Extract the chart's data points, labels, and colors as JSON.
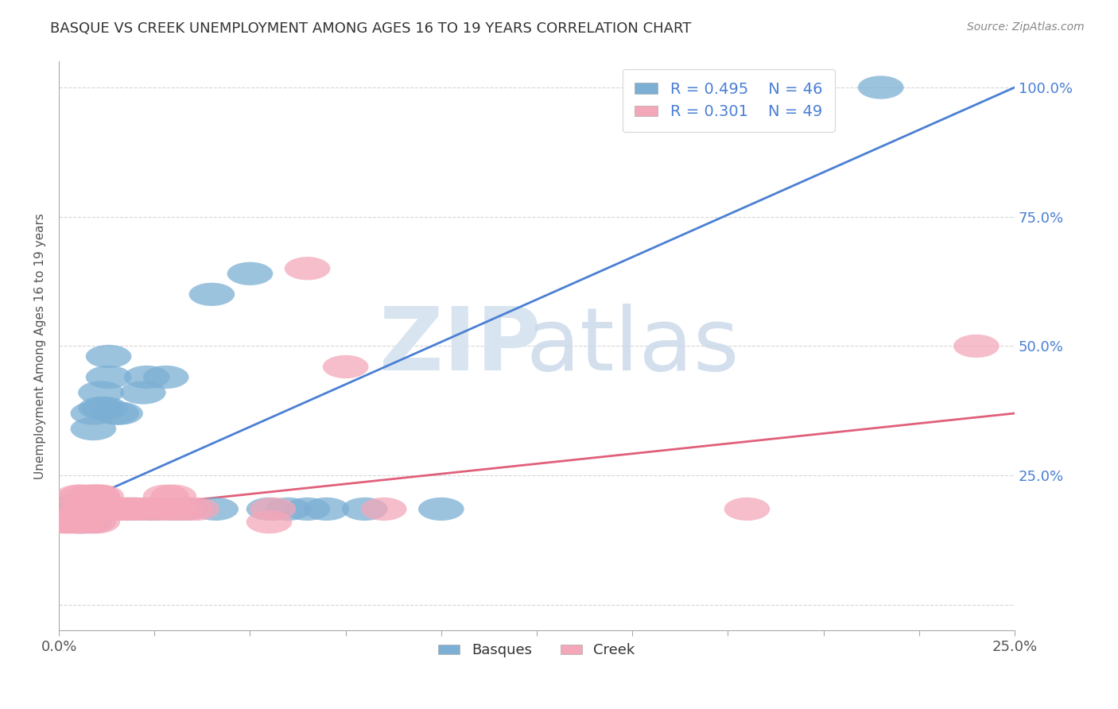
{
  "title": "BASQUE VS CREEK UNEMPLOYMENT AMONG AGES 16 TO 19 YEARS CORRELATION CHART",
  "source": "Source: ZipAtlas.com",
  "ylabel": "Unemployment Among Ages 16 to 19 years",
  "xlim": [
    0.0,
    0.25
  ],
  "ylim": [
    -0.05,
    1.05
  ],
  "xticks": [
    0.0,
    0.025,
    0.05,
    0.075,
    0.1,
    0.125,
    0.15,
    0.175,
    0.2,
    0.225,
    0.25
  ],
  "xticklabels": [
    "0.0%",
    "",
    "",
    "",
    "",
    "",
    "",
    "",
    "",
    "",
    "25.0%"
  ],
  "ytick_positions": [
    0.0,
    0.25,
    0.5,
    0.75,
    1.0
  ],
  "yticklabels": [
    "",
    "25.0%",
    "50.0%",
    "75.0%",
    "100.0%"
  ],
  "basque_color": "#7bafd4",
  "creek_color": "#f4a7b9",
  "basque_line_color": "#4a7fd4",
  "creek_line_color": "#e0607a",
  "R_basque": 0.495,
  "N_basque": 46,
  "R_creek": 0.301,
  "N_creek": 49,
  "background_color": "#ffffff",
  "grid_color": "#cccccc",
  "basque_line": [
    [
      0.0,
      0.18
    ],
    [
      0.25,
      1.0
    ]
  ],
  "creek_line": [
    [
      0.0,
      0.175
    ],
    [
      0.25,
      0.37
    ]
  ],
  "basque_scatter": [
    [
      0.001,
      0.18
    ],
    [
      0.002,
      0.185
    ],
    [
      0.003,
      0.185
    ],
    [
      0.003,
      0.19
    ],
    [
      0.004,
      0.17
    ],
    [
      0.004,
      0.185
    ],
    [
      0.005,
      0.16
    ],
    [
      0.006,
      0.16
    ],
    [
      0.007,
      0.17
    ],
    [
      0.007,
      0.185
    ],
    [
      0.008,
      0.16
    ],
    [
      0.008,
      0.185
    ],
    [
      0.009,
      0.185
    ],
    [
      0.009,
      0.34
    ],
    [
      0.009,
      0.37
    ],
    [
      0.01,
      0.185
    ],
    [
      0.01,
      0.185
    ],
    [
      0.011,
      0.38
    ],
    [
      0.011,
      0.41
    ],
    [
      0.012,
      0.185
    ],
    [
      0.012,
      0.38
    ],
    [
      0.013,
      0.44
    ],
    [
      0.013,
      0.48
    ],
    [
      0.014,
      0.185
    ],
    [
      0.015,
      0.37
    ],
    [
      0.016,
      0.37
    ],
    [
      0.018,
      0.185
    ],
    [
      0.02,
      0.185
    ],
    [
      0.022,
      0.41
    ],
    [
      0.023,
      0.44
    ],
    [
      0.024,
      0.185
    ],
    [
      0.025,
      0.185
    ],
    [
      0.028,
      0.44
    ],
    [
      0.03,
      0.185
    ],
    [
      0.033,
      0.185
    ],
    [
      0.04,
      0.6
    ],
    [
      0.041,
      0.185
    ],
    [
      0.05,
      0.64
    ],
    [
      0.055,
      0.185
    ],
    [
      0.06,
      0.185
    ],
    [
      0.065,
      0.185
    ],
    [
      0.07,
      0.185
    ],
    [
      0.08,
      0.185
    ],
    [
      0.1,
      0.185
    ],
    [
      0.195,
      0.97
    ],
    [
      0.215,
      1.0
    ]
  ],
  "creek_scatter": [
    [
      0.001,
      0.16
    ],
    [
      0.002,
      0.16
    ],
    [
      0.003,
      0.16
    ],
    [
      0.004,
      0.16
    ],
    [
      0.004,
      0.185
    ],
    [
      0.005,
      0.16
    ],
    [
      0.005,
      0.21
    ],
    [
      0.006,
      0.16
    ],
    [
      0.006,
      0.185
    ],
    [
      0.006,
      0.21
    ],
    [
      0.007,
      0.16
    ],
    [
      0.007,
      0.185
    ],
    [
      0.008,
      0.185
    ],
    [
      0.008,
      0.21
    ],
    [
      0.009,
      0.16
    ],
    [
      0.009,
      0.185
    ],
    [
      0.009,
      0.21
    ],
    [
      0.01,
      0.16
    ],
    [
      0.01,
      0.185
    ],
    [
      0.01,
      0.21
    ],
    [
      0.01,
      0.21
    ],
    [
      0.011,
      0.185
    ],
    [
      0.011,
      0.21
    ],
    [
      0.012,
      0.185
    ],
    [
      0.013,
      0.185
    ],
    [
      0.014,
      0.185
    ],
    [
      0.015,
      0.185
    ],
    [
      0.016,
      0.185
    ],
    [
      0.017,
      0.185
    ],
    [
      0.018,
      0.185
    ],
    [
      0.019,
      0.185
    ],
    [
      0.02,
      0.185
    ],
    [
      0.022,
      0.185
    ],
    [
      0.025,
      0.185
    ],
    [
      0.026,
      0.185
    ],
    [
      0.028,
      0.185
    ],
    [
      0.028,
      0.21
    ],
    [
      0.03,
      0.185
    ],
    [
      0.03,
      0.21
    ],
    [
      0.032,
      0.185
    ],
    [
      0.034,
      0.185
    ],
    [
      0.036,
      0.185
    ],
    [
      0.055,
      0.16
    ],
    [
      0.056,
      0.185
    ],
    [
      0.065,
      0.65
    ],
    [
      0.075,
      0.46
    ],
    [
      0.085,
      0.185
    ],
    [
      0.18,
      0.185
    ],
    [
      0.24,
      0.5
    ]
  ]
}
